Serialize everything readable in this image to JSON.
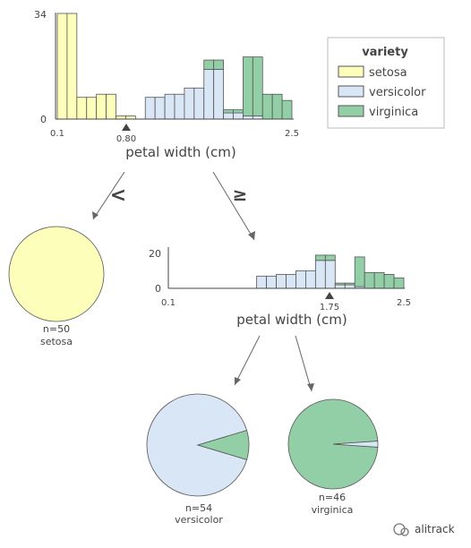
{
  "legend": {
    "title": "variety",
    "items": [
      {
        "label": "setosa",
        "color": "#fefebb"
      },
      {
        "label": "versicolor",
        "color": "#d9e6f5"
      },
      {
        "label": "virginica",
        "color": "#92cfa6"
      }
    ]
  },
  "colors": {
    "setosa": "#fefebb",
    "versicolor": "#d9e6f5",
    "virginica": "#92cfa6",
    "axis": "#444444",
    "edge": "#555555"
  },
  "split_symbols": {
    "less": "<",
    "greater_equal": "≥"
  },
  "chart_data": [
    {
      "type": "bar",
      "stacked": true,
      "xlabel": "petal width (cm)",
      "ylabel": "",
      "x_ticks": [
        "0.1",
        "2.5"
      ],
      "y_ticks": [
        "0",
        "34"
      ],
      "ylim": [
        0,
        34
      ],
      "xlim": [
        0.1,
        2.5
      ],
      "split_value": 0.8,
      "split_label": "0.80",
      "bin_edges": [
        0.1,
        0.2,
        0.3,
        0.4,
        0.5,
        0.6,
        0.7,
        0.8,
        0.9,
        1.0,
        1.1,
        1.2,
        1.3,
        1.4,
        1.5,
        1.6,
        1.7,
        1.8,
        1.9,
        2.0,
        2.1,
        2.2,
        2.3,
        2.4,
        2.5
      ],
      "series": [
        {
          "name": "setosa",
          "values": [
            34,
            34,
            7,
            7,
            8,
            8,
            1,
            1,
            0,
            0,
            0,
            0,
            0,
            0,
            0,
            0,
            0,
            0,
            0,
            0,
            0,
            0,
            0,
            0
          ]
        },
        {
          "name": "versicolor",
          "values": [
            0,
            0,
            0,
            0,
            0,
            0,
            0,
            0,
            0,
            7,
            7,
            8,
            8,
            10,
            10,
            16,
            16,
            2,
            2,
            1,
            1,
            0,
            0,
            0
          ]
        },
        {
          "name": "virginica",
          "values": [
            0,
            0,
            0,
            0,
            0,
            0,
            0,
            0,
            0,
            0,
            0,
            0,
            0,
            0,
            0,
            3,
            3,
            1,
            1,
            19,
            19,
            8,
            8,
            6
          ]
        }
      ]
    },
    {
      "type": "bar",
      "stacked": true,
      "xlabel": "petal width (cm)",
      "ylabel": "",
      "x_ticks": [
        "0.1",
        "2.5"
      ],
      "y_ticks": [
        "0",
        "20"
      ],
      "ylim": [
        0,
        20
      ],
      "xlim": [
        0.1,
        2.5
      ],
      "split_value": 1.75,
      "split_label": "1.75",
      "bin_edges": [
        1.0,
        1.1,
        1.2,
        1.3,
        1.4,
        1.5,
        1.6,
        1.7,
        1.8,
        1.9,
        2.0,
        2.1,
        2.2,
        2.3,
        2.4,
        2.5
      ],
      "series": [
        {
          "name": "versicolor",
          "values": [
            7,
            7,
            8,
            8,
            10,
            10,
            16,
            16,
            2,
            2,
            1,
            0,
            0,
            0,
            0
          ]
        },
        {
          "name": "virginica",
          "values": [
            0,
            0,
            0,
            0,
            0,
            0,
            3,
            3,
            1,
            1,
            17,
            9,
            9,
            8,
            6
          ]
        }
      ]
    },
    {
      "type": "pie",
      "label": "n=50",
      "class": "setosa",
      "slices": [
        {
          "name": "setosa",
          "value": 50
        }
      ]
    },
    {
      "type": "pie",
      "label": "n=54",
      "class": "versicolor",
      "slices": [
        {
          "name": "versicolor",
          "value": 49
        },
        {
          "name": "virginica",
          "value": 5
        }
      ]
    },
    {
      "type": "pie",
      "label": "n=46",
      "class": "virginica",
      "slices": [
        {
          "name": "virginica",
          "value": 45
        },
        {
          "name": "versicolor",
          "value": 1
        }
      ]
    }
  ],
  "watermark": "alitrack"
}
